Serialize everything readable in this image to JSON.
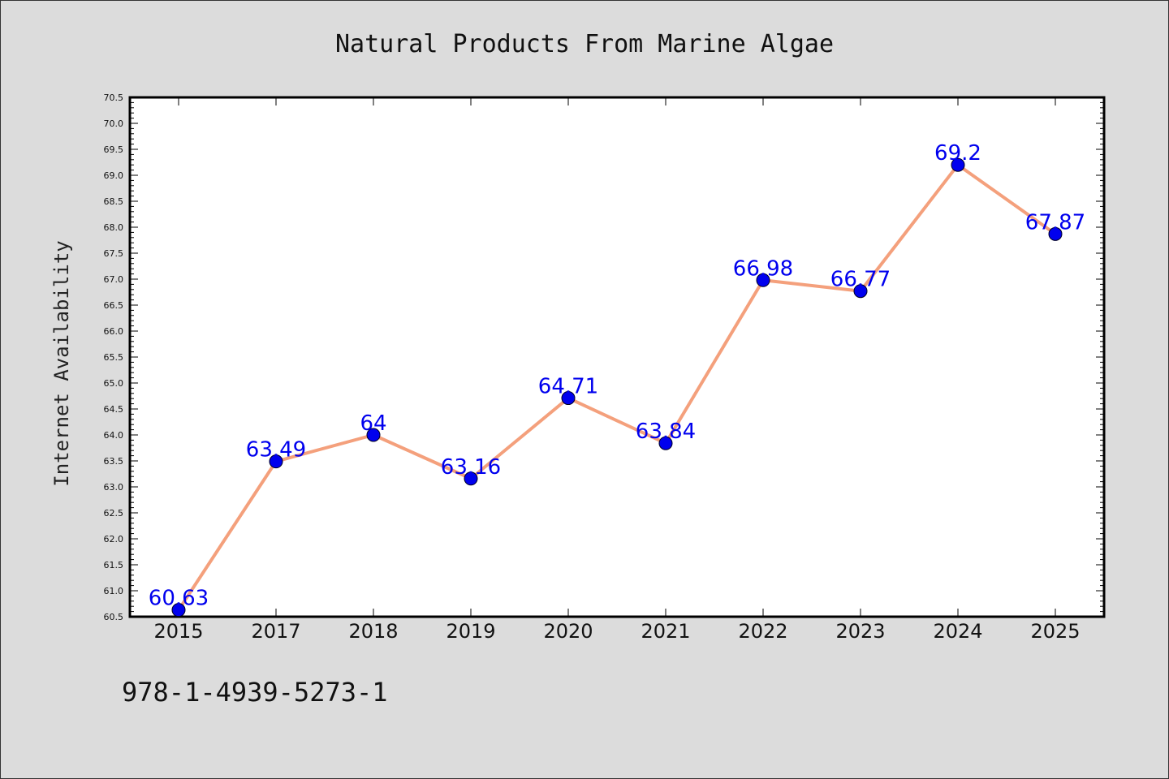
{
  "chart_data": {
    "type": "line",
    "title": "Natural Products From Marine Algae",
    "xlabel": "",
    "ylabel": "Internet Availability",
    "categories": [
      "2015",
      "2017",
      "2018",
      "2019",
      "2020",
      "2021",
      "2022",
      "2023",
      "2024",
      "2025"
    ],
    "series": [
      {
        "values": [
          60.63,
          63.49,
          64,
          63.16,
          64.71,
          63.84,
          66.98,
          66.77,
          69.2,
          67.87
        ],
        "data_labels": [
          "60.63",
          "63.49",
          "64",
          "63.16",
          "64.71",
          "63.84",
          "66.98",
          "66.77",
          "69.2",
          "67.87"
        ],
        "line_color": "#f4a07c",
        "marker_color": "#0000ee"
      }
    ],
    "ylim": [
      60.5,
      70.5
    ],
    "yticks": [
      "60.5",
      "61.0",
      "61.5",
      "62.0",
      "62.5",
      "63.0",
      "63.5",
      "64.0",
      "64.5",
      "65.0",
      "65.5",
      "66.0",
      "66.5",
      "67.0",
      "67.5",
      "68.0",
      "68.5",
      "69.0",
      "69.5",
      "70.0",
      "70.5"
    ],
    "grid": false,
    "legend": "none"
  },
  "footer": {
    "isbn": "978-1-4939-5273-1"
  },
  "colors": {
    "background": "#dcdcdc",
    "plot_background": "#ffffff",
    "label_color": "#0000ee"
  }
}
